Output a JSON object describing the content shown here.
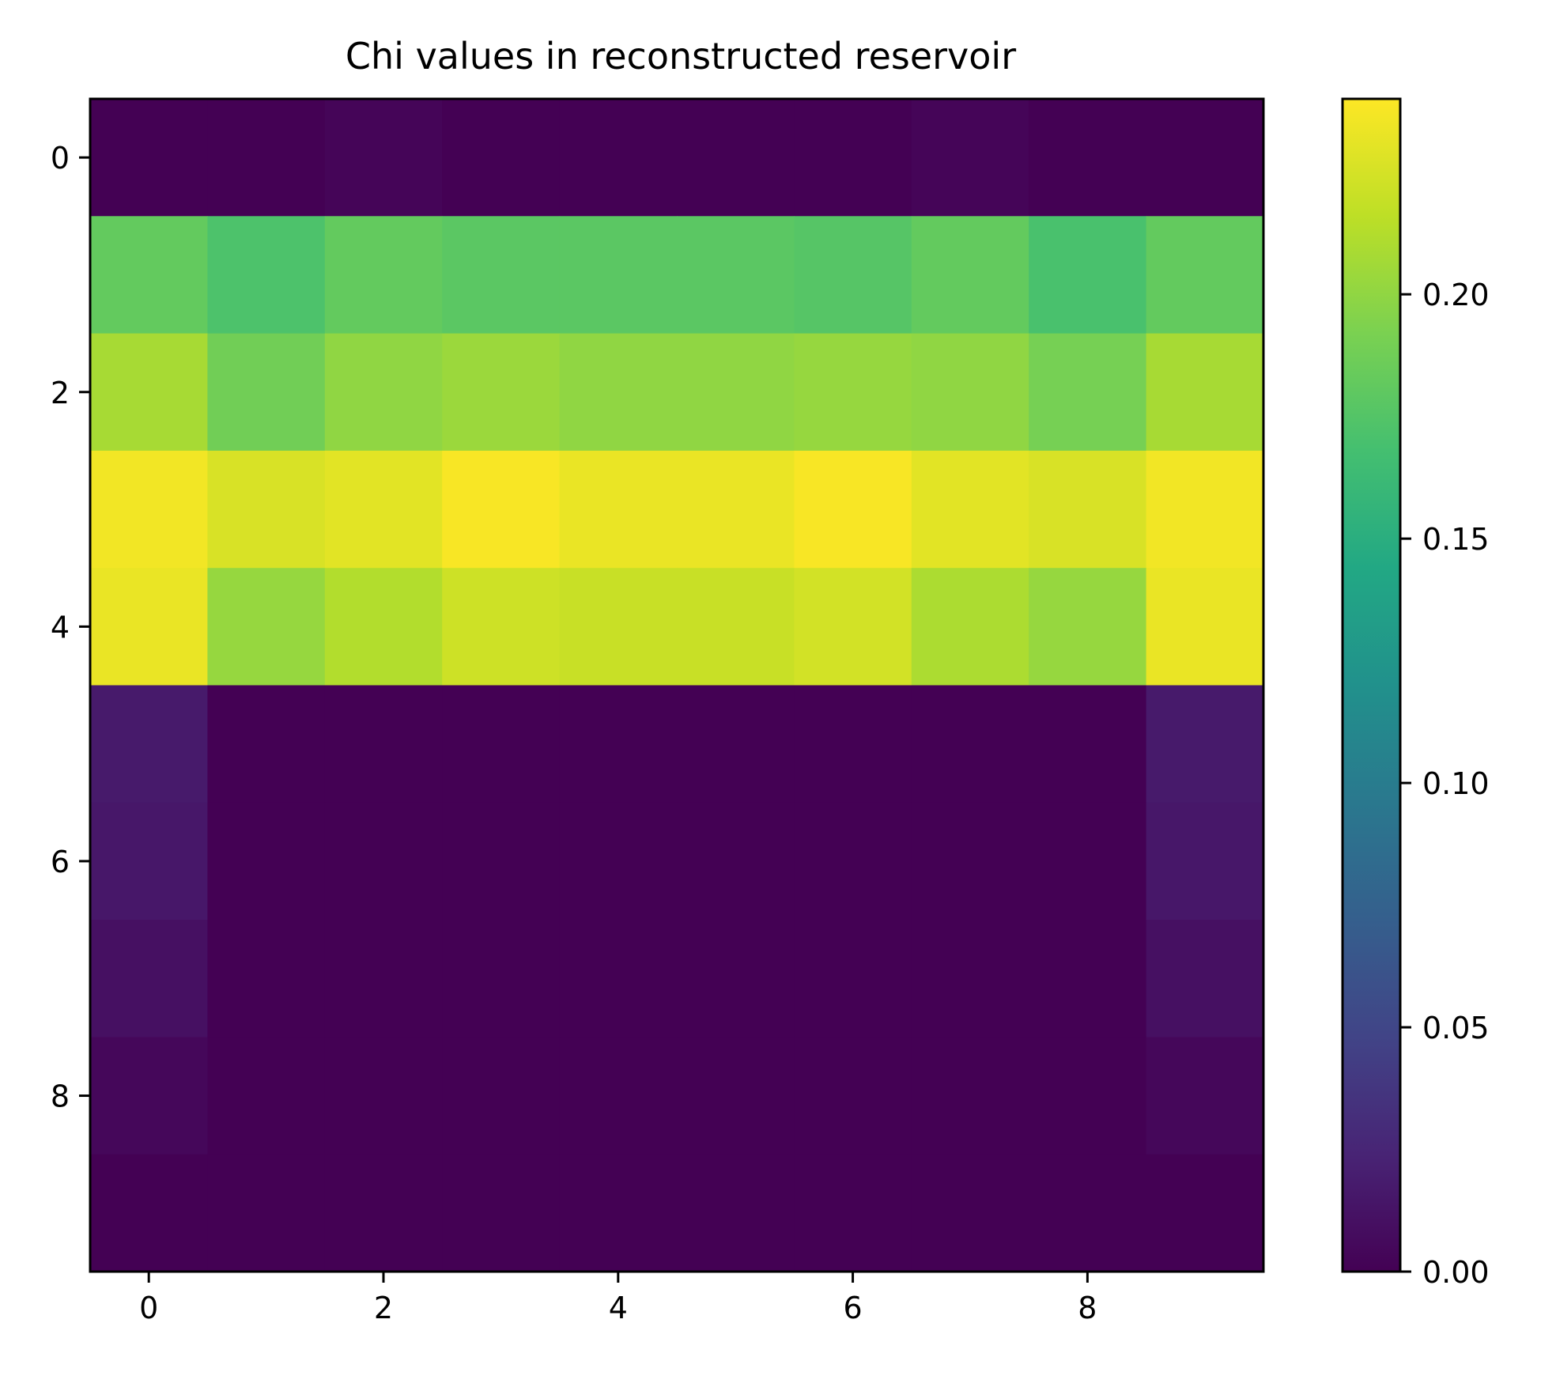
{
  "chart_data": {
    "type": "heatmap",
    "title": "Chi values in reconstructed reservoir",
    "xlabel": "",
    "ylabel": "",
    "x_ticks": [
      "0",
      "2",
      "4",
      "6",
      "8"
    ],
    "y_ticks": [
      "0",
      "2",
      "4",
      "6",
      "8"
    ],
    "colorbar_ticks": [
      "0.00",
      "0.05",
      "0.10",
      "0.15",
      "0.20"
    ],
    "vmin": 0.0,
    "vmax": 0.24,
    "colormap": "viridis",
    "rows": 10,
    "cols": 10,
    "values": [
      [
        0.0,
        0.0,
        0.003,
        0.0,
        0.0,
        0.0,
        0.0,
        0.003,
        0.0,
        0.0
      ],
      [
        0.182,
        0.172,
        0.182,
        0.178,
        0.178,
        0.178,
        0.176,
        0.182,
        0.17,
        0.182
      ],
      [
        0.208,
        0.188,
        0.2,
        0.204,
        0.2,
        0.2,
        0.202,
        0.2,
        0.19,
        0.208
      ],
      [
        0.236,
        0.226,
        0.23,
        0.238,
        0.233,
        0.233,
        0.238,
        0.23,
        0.226,
        0.236
      ],
      [
        0.233,
        0.202,
        0.212,
        0.222,
        0.22,
        0.22,
        0.224,
        0.21,
        0.202,
        0.233
      ],
      [
        0.017,
        0.0,
        0.0,
        0.0,
        0.0,
        0.0,
        0.0,
        0.0,
        0.0,
        0.017
      ],
      [
        0.015,
        0.0,
        0.0,
        0.0,
        0.0,
        0.0,
        0.0,
        0.0,
        0.0,
        0.015
      ],
      [
        0.01,
        0.0,
        0.0,
        0.0,
        0.0,
        0.0,
        0.0,
        0.0,
        0.0,
        0.01
      ],
      [
        0.004,
        0.0,
        0.0,
        0.0,
        0.0,
        0.0,
        0.0,
        0.0,
        0.0,
        0.004
      ],
      [
        0.0,
        0.0,
        0.0,
        0.0,
        0.0,
        0.0,
        0.0,
        0.0,
        0.0,
        0.0
      ]
    ]
  }
}
